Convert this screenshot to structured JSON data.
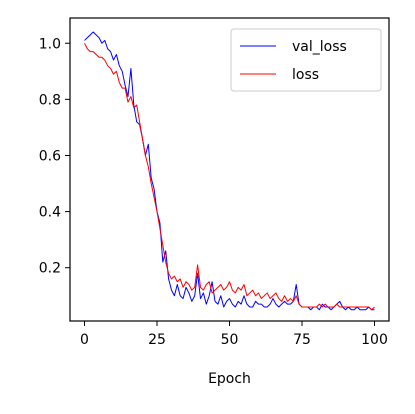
{
  "chart_data": {
    "type": "line",
    "xlabel": "Epoch",
    "ylabel": "",
    "xlim": [
      -5,
      105
    ],
    "ylim": [
      0.01,
      1.09
    ],
    "xticks": [
      0,
      25,
      50,
      75,
      100
    ],
    "yticks": [
      0.2,
      0.4,
      0.6,
      0.8,
      1.0
    ],
    "xtick_labels": [
      "0",
      "25",
      "50",
      "75",
      "100"
    ],
    "ytick_labels": [
      "0.2",
      "0.4",
      "0.6",
      "0.8",
      "1.0"
    ],
    "grid": false,
    "legend_position": "top-right",
    "series": [
      {
        "name": "val_loss",
        "color": "#0000ff",
        "x": [
          0,
          1,
          2,
          3,
          4,
          5,
          6,
          7,
          8,
          9,
          10,
          11,
          12,
          13,
          14,
          15,
          16,
          17,
          18,
          19,
          20,
          21,
          22,
          23,
          24,
          25,
          26,
          27,
          28,
          29,
          30,
          31,
          32,
          33,
          34,
          35,
          36,
          37,
          38,
          39,
          40,
          41,
          42,
          43,
          44,
          45,
          46,
          47,
          48,
          49,
          50,
          51,
          52,
          53,
          54,
          55,
          56,
          57,
          58,
          59,
          60,
          61,
          62,
          63,
          64,
          65,
          66,
          67,
          68,
          69,
          70,
          71,
          72,
          73,
          74,
          75,
          76,
          77,
          78,
          79,
          80,
          81,
          82,
          83,
          84,
          85,
          86,
          87,
          88,
          89,
          90,
          91,
          92,
          93,
          94,
          95,
          96,
          97,
          98,
          99,
          100
        ],
        "values": [
          1.01,
          1.02,
          1.03,
          1.04,
          1.03,
          1.02,
          1.0,
          1.01,
          0.98,
          0.97,
          0.94,
          0.96,
          0.92,
          0.9,
          0.85,
          0.81,
          0.91,
          0.78,
          0.72,
          0.71,
          0.66,
          0.6,
          0.64,
          0.52,
          0.48,
          0.4,
          0.36,
          0.22,
          0.26,
          0.16,
          0.12,
          0.1,
          0.14,
          0.1,
          0.09,
          0.13,
          0.11,
          0.08,
          0.1,
          0.18,
          0.09,
          0.11,
          0.07,
          0.1,
          0.15,
          0.08,
          0.07,
          0.1,
          0.06,
          0.08,
          0.09,
          0.07,
          0.06,
          0.08,
          0.07,
          0.1,
          0.07,
          0.06,
          0.06,
          0.08,
          0.07,
          0.07,
          0.06,
          0.06,
          0.07,
          0.09,
          0.07,
          0.06,
          0.07,
          0.08,
          0.07,
          0.07,
          0.08,
          0.14,
          0.07,
          0.06,
          0.06,
          0.06,
          0.05,
          0.06,
          0.06,
          0.05,
          0.07,
          0.06,
          0.06,
          0.05,
          0.06,
          0.07,
          0.08,
          0.06,
          0.05,
          0.06,
          0.05,
          0.05,
          0.06,
          0.05,
          0.05,
          0.05,
          0.06,
          0.05,
          0.05
        ]
      },
      {
        "name": "loss",
        "color": "#ff0000",
        "x": [
          0,
          1,
          2,
          3,
          4,
          5,
          6,
          7,
          8,
          9,
          10,
          11,
          12,
          13,
          14,
          15,
          16,
          17,
          18,
          19,
          20,
          21,
          22,
          23,
          24,
          25,
          26,
          27,
          28,
          29,
          30,
          31,
          32,
          33,
          34,
          35,
          36,
          37,
          38,
          39,
          40,
          41,
          42,
          43,
          44,
          45,
          46,
          47,
          48,
          49,
          50,
          51,
          52,
          53,
          54,
          55,
          56,
          57,
          58,
          59,
          60,
          61,
          62,
          63,
          64,
          65,
          66,
          67,
          68,
          69,
          70,
          71,
          72,
          73,
          74,
          75,
          76,
          77,
          78,
          79,
          80,
          81,
          82,
          83,
          84,
          85,
          86,
          87,
          88,
          89,
          90,
          91,
          92,
          93,
          94,
          95,
          96,
          97,
          98,
          99,
          100
        ],
        "values": [
          1.0,
          0.98,
          0.97,
          0.97,
          0.96,
          0.95,
          0.95,
          0.94,
          0.92,
          0.91,
          0.89,
          0.9,
          0.86,
          0.84,
          0.84,
          0.79,
          0.81,
          0.77,
          0.78,
          0.72,
          0.66,
          0.6,
          0.56,
          0.5,
          0.45,
          0.4,
          0.34,
          0.28,
          0.22,
          0.18,
          0.16,
          0.17,
          0.15,
          0.16,
          0.13,
          0.15,
          0.14,
          0.12,
          0.13,
          0.21,
          0.13,
          0.12,
          0.14,
          0.15,
          0.11,
          0.12,
          0.13,
          0.14,
          0.12,
          0.13,
          0.15,
          0.12,
          0.11,
          0.13,
          0.12,
          0.14,
          0.1,
          0.11,
          0.12,
          0.1,
          0.11,
          0.09,
          0.1,
          0.11,
          0.09,
          0.1,
          0.11,
          0.09,
          0.08,
          0.1,
          0.08,
          0.09,
          0.08,
          0.1,
          0.07,
          0.06,
          0.06,
          0.06,
          0.06,
          0.06,
          0.06,
          0.07,
          0.06,
          0.07,
          0.06,
          0.06,
          0.06,
          0.07,
          0.06,
          0.06,
          0.06,
          0.06,
          0.06,
          0.06,
          0.06,
          0.06,
          0.06,
          0.06,
          0.06,
          0.05,
          0.06
        ]
      }
    ]
  }
}
